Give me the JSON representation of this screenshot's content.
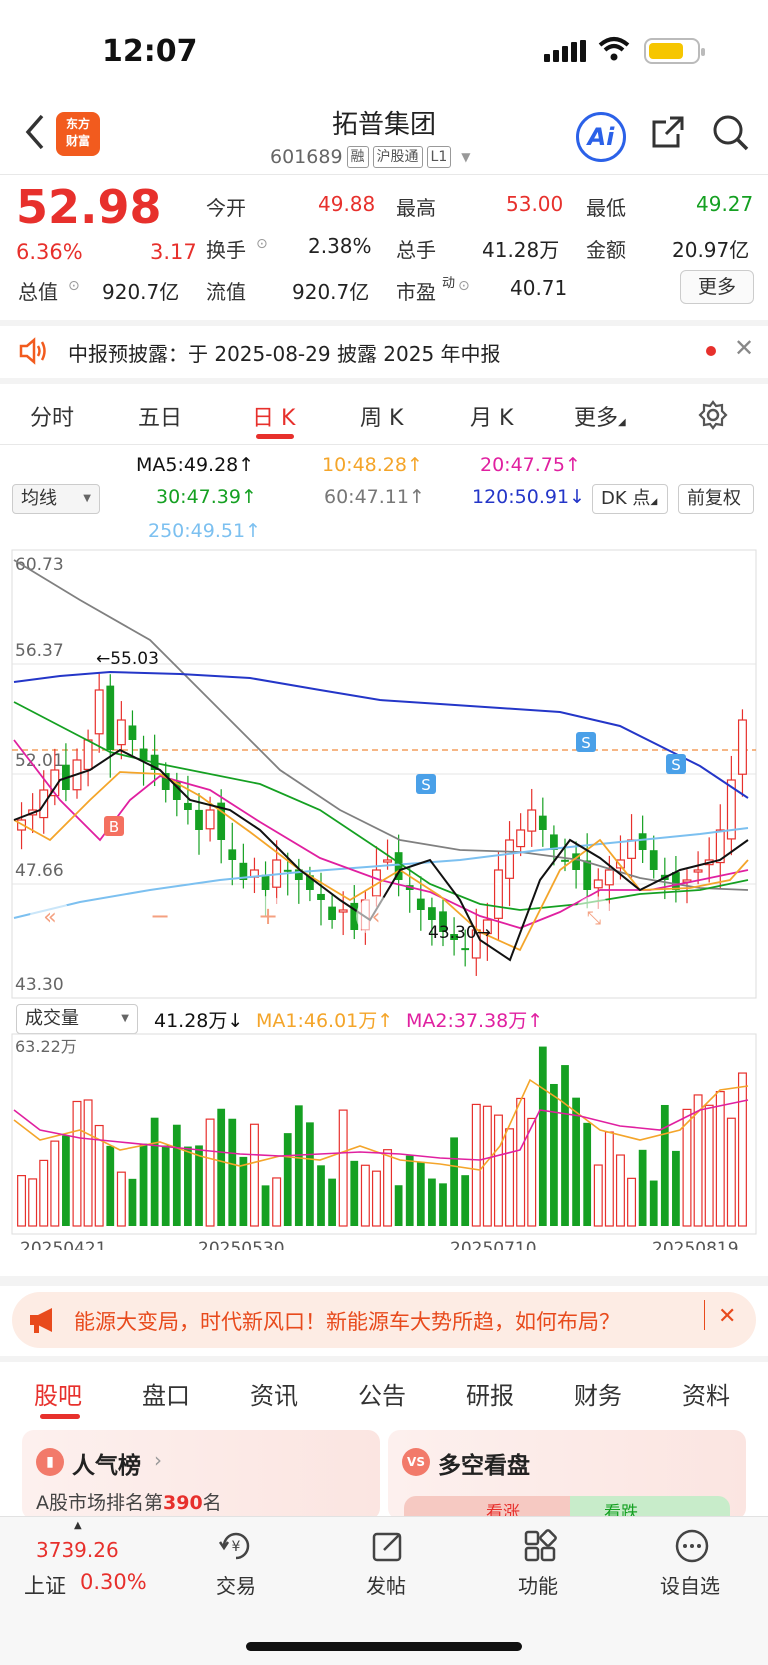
{
  "status_bar": {
    "time": "12:07"
  },
  "header": {
    "stock_name": "拓普集团",
    "stock_code": "601689",
    "tags": [
      "融",
      "沪股通",
      "L1"
    ],
    "logo_text_1": "东方",
    "logo_text_2": "财富",
    "ai_label": "Ai"
  },
  "quote": {
    "price": "52.98",
    "change_pct": "6.36%",
    "change_val": "3.17",
    "open_label": "今开",
    "open": "49.88",
    "high_label": "最高",
    "high": "53.00",
    "low_label": "最低",
    "low": "49.27",
    "turnover_label": "换手",
    "turnover": "2.38%",
    "volume_label": "总手",
    "volume": "41.28万",
    "amount_label": "金额",
    "amount": "20.97亿",
    "mktcap_label": "总值",
    "mktcap": "920.7亿",
    "float_label": "流值",
    "float_cap": "920.7亿",
    "pe_label": "市盈",
    "pe_sup": "动",
    "pe": "40.71",
    "more_label": "更多"
  },
  "notice": {
    "text": "中报预披露：于 2025-08-29 披露 2025 年中报"
  },
  "period_tabs": [
    "分时",
    "五日",
    "日 K",
    "周 K",
    "月 K",
    "更多"
  ],
  "active_period": "日 K",
  "ma_legend": {
    "ma_selector": "均线",
    "ma5": "MA5:49.28",
    "ma10": "10:48.28",
    "ma20": "20:47.75",
    "ma30": "30:47.39",
    "ma60": "60:47.11",
    "ma120": "120:50.91",
    "ma250": "250:49.51",
    "dk_label": "DK 点",
    "adjust_label": "前复权"
  },
  "chart_data": {
    "type": "candlestick",
    "y_ticks": [
      "60.73",
      "56.37",
      "52.01",
      "47.66",
      "43.30"
    ],
    "ylim": [
      43.3,
      60.73
    ],
    "high_marker": "←55.03",
    "low_marker": "43.30→",
    "x_labels": [
      "20250421",
      "20250530",
      "20250710",
      "20250819"
    ],
    "signal_labels": [
      "B",
      "S",
      "S",
      "S"
    ],
    "colors": {
      "up": "#e7302c",
      "down": "#15a022",
      "ma5": "#111111",
      "ma10": "#f4a52a",
      "ma20": "#e020a0",
      "ma30": "#15a022",
      "ma60": "#808080",
      "ma120": "#2436c8",
      "ma250": "#7cc0f0"
    },
    "volume": {
      "selector": "成交量",
      "value": "41.28万",
      "ma1": "MA1:46.01万",
      "ma2": "MA2:37.38万",
      "max_label": "63.22万"
    }
  },
  "ad_banner": {
    "text": "能源大变局，时代新风口！新能源车大势所趋，如何布局？"
  },
  "info_tabs": [
    "股吧",
    "盘口",
    "资讯",
    "公告",
    "研报",
    "财务",
    "资料"
  ],
  "active_info_tab": "股吧",
  "cards": {
    "popularity_title": "人气榜",
    "rank_text": "A股市场排名第",
    "rank": "390",
    "rank_suffix": "名",
    "longshort_title": "多空看盘",
    "bull": "看涨",
    "bear": "看跌"
  },
  "bottom_nav": {
    "index_value": "3739.26",
    "index_name": "上证",
    "index_change": "0.30%",
    "items": [
      "交易",
      "发帖",
      "功能",
      "设自选"
    ]
  }
}
